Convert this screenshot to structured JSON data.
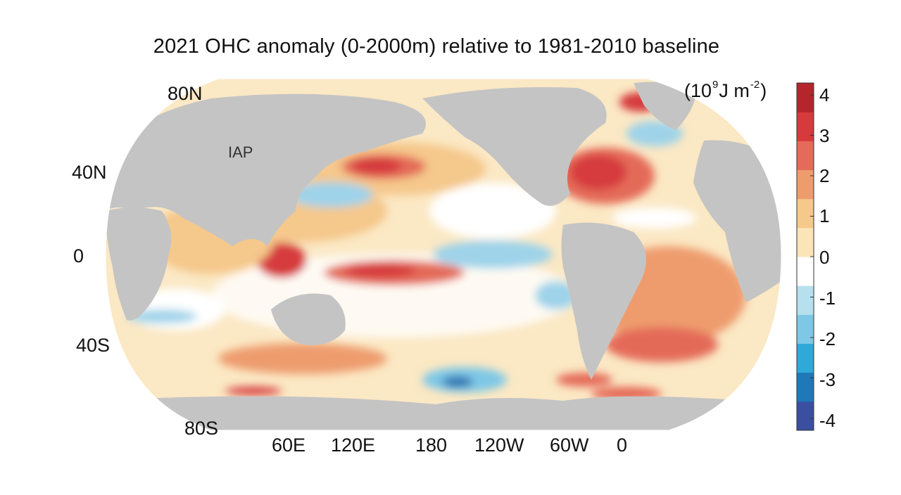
{
  "map": {
    "title": "2021 OHC anomaly (0-2000m) relative to 1981-2010 baseline",
    "source_label": "IAP",
    "projection": "Robinson",
    "land_color": "#c4c4c4",
    "lat_labels": [
      "80N",
      "40N",
      "0",
      "40S",
      "80S"
    ],
    "lon_labels": [
      "60E",
      "120E",
      "180",
      "120W",
      "60W",
      "0"
    ]
  },
  "colorbar": {
    "unit_prefix": "(10",
    "unit_exp": "9",
    "unit_mid": "J m",
    "unit_exp2": "-2",
    "unit_suffix": ")",
    "ticks": [
      "4",
      "3",
      "2",
      "1",
      "0",
      "-1",
      "-2",
      "-3",
      "-4"
    ],
    "range": [
      -4,
      4
    ],
    "colors": [
      "#3a4fa0",
      "#1f78b8",
      "#2fa9d8",
      "#7ec8e6",
      "#b7e0ee",
      "#ffffff",
      "#fbe4b8",
      "#f5c88c",
      "#ee9c6e",
      "#e46b59",
      "#d63a3d",
      "#b5262c"
    ]
  }
}
